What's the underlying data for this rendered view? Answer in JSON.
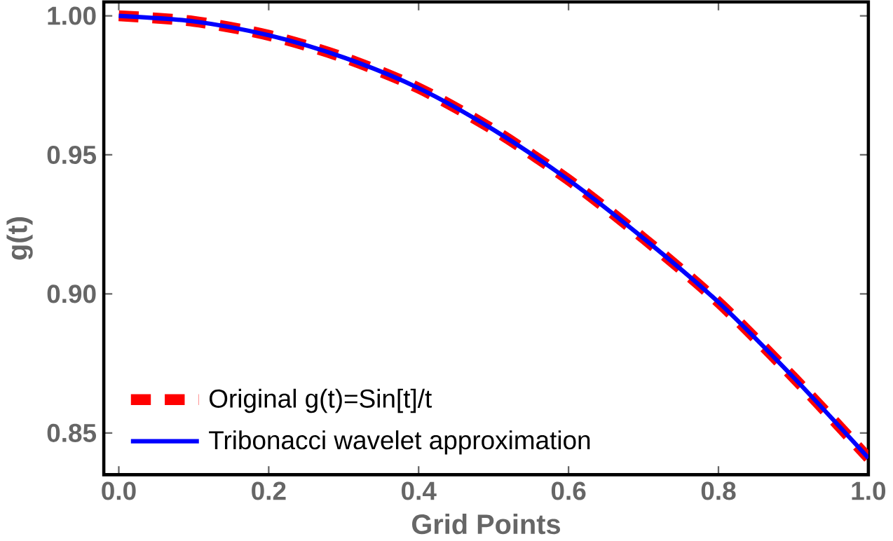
{
  "chart_data": {
    "type": "line",
    "xlabel": "Grid Points",
    "ylabel": "g(t)",
    "x": [
      0,
      0.1,
      0.2,
      0.3,
      0.4,
      0.5,
      0.6,
      0.7,
      0.8,
      0.9,
      1.0
    ],
    "series": [
      {
        "name": "Original g(t)=Sin[t]/t",
        "color": "#ff0000",
        "line_style": "dashed",
        "values": [
          1.0,
          0.998,
          0.993,
          0.985,
          0.974,
          0.959,
          0.941,
          0.92,
          0.897,
          0.87,
          0.841
        ]
      },
      {
        "name": "Tribonacci wavelet approximation",
        "color": "#0000ff",
        "line_style": "solid",
        "values": [
          1.0,
          0.998,
          0.993,
          0.985,
          0.974,
          0.959,
          0.941,
          0.92,
          0.897,
          0.87,
          0.841
        ]
      }
    ],
    "xlim": [
      -0.02,
      1.0
    ],
    "ylim": [
      0.835,
      1.005
    ],
    "xticks": [
      {
        "value": 0,
        "label": "0.0"
      },
      {
        "value": 0.2,
        "label": "0.2"
      },
      {
        "value": 0.4,
        "label": "0.4"
      },
      {
        "value": 0.6,
        "label": "0.6"
      },
      {
        "value": 0.8,
        "label": "0.8"
      },
      {
        "value": 1.0,
        "label": "1.0"
      }
    ],
    "yticks": [
      {
        "value": 0.85,
        "label": "0.85"
      },
      {
        "value": 0.9,
        "label": "0.90"
      },
      {
        "value": 0.95,
        "label": "0.95"
      },
      {
        "value": 1.0,
        "label": "1.00"
      }
    ],
    "legend": "bottom left",
    "grid": false,
    "marker": "none"
  }
}
